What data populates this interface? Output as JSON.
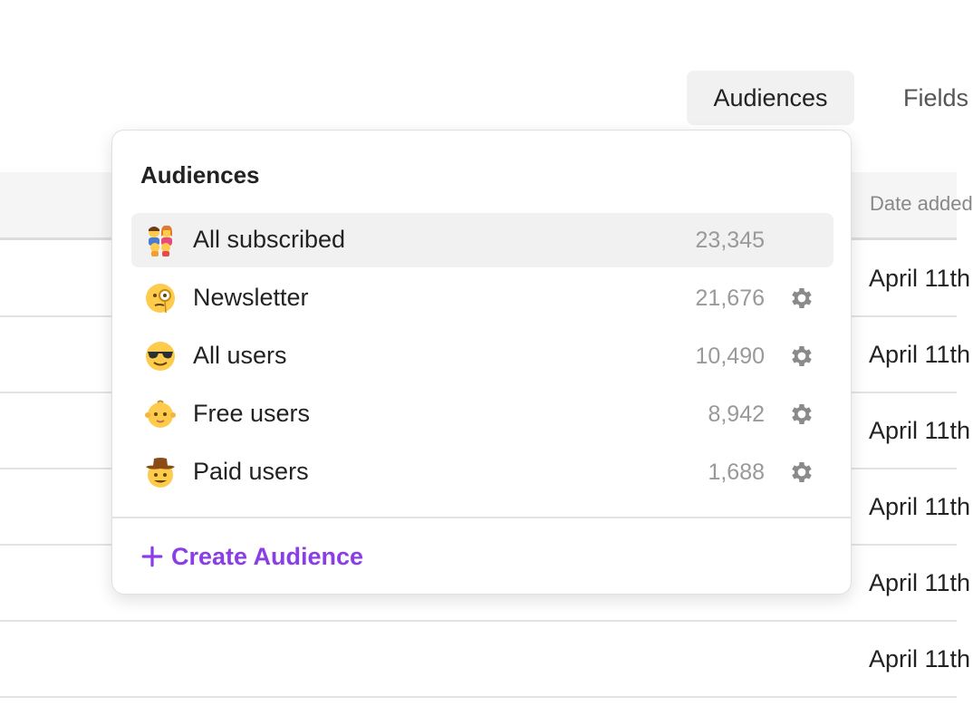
{
  "tabs": {
    "audiences": "Audiences",
    "fields": "Fields"
  },
  "table": {
    "date_header": "Date added",
    "rows": [
      {
        "date": "April 11th"
      },
      {
        "date": "April 11th"
      },
      {
        "date": "April 11th"
      },
      {
        "date": "April 11th"
      },
      {
        "date": "April 11th"
      },
      {
        "date": "April 11th"
      }
    ]
  },
  "dropdown": {
    "title": "Audiences",
    "items": [
      {
        "emoji": "family-emoji",
        "label": "All subscribed",
        "count": "23,345",
        "selected": true
      },
      {
        "emoji": "monocle-face-emoji",
        "label": "Newsletter",
        "count": "21,676"
      },
      {
        "emoji": "sunglasses-face-emoji",
        "label": "All users",
        "count": "10,490"
      },
      {
        "emoji": "baby-emoji",
        "label": "Free users",
        "count": "8,942"
      },
      {
        "emoji": "cowboy-face-emoji",
        "label": "Paid users",
        "count": "1,688"
      }
    ],
    "create_label": "Create Audience",
    "accent_color": "#8b3ee6"
  }
}
